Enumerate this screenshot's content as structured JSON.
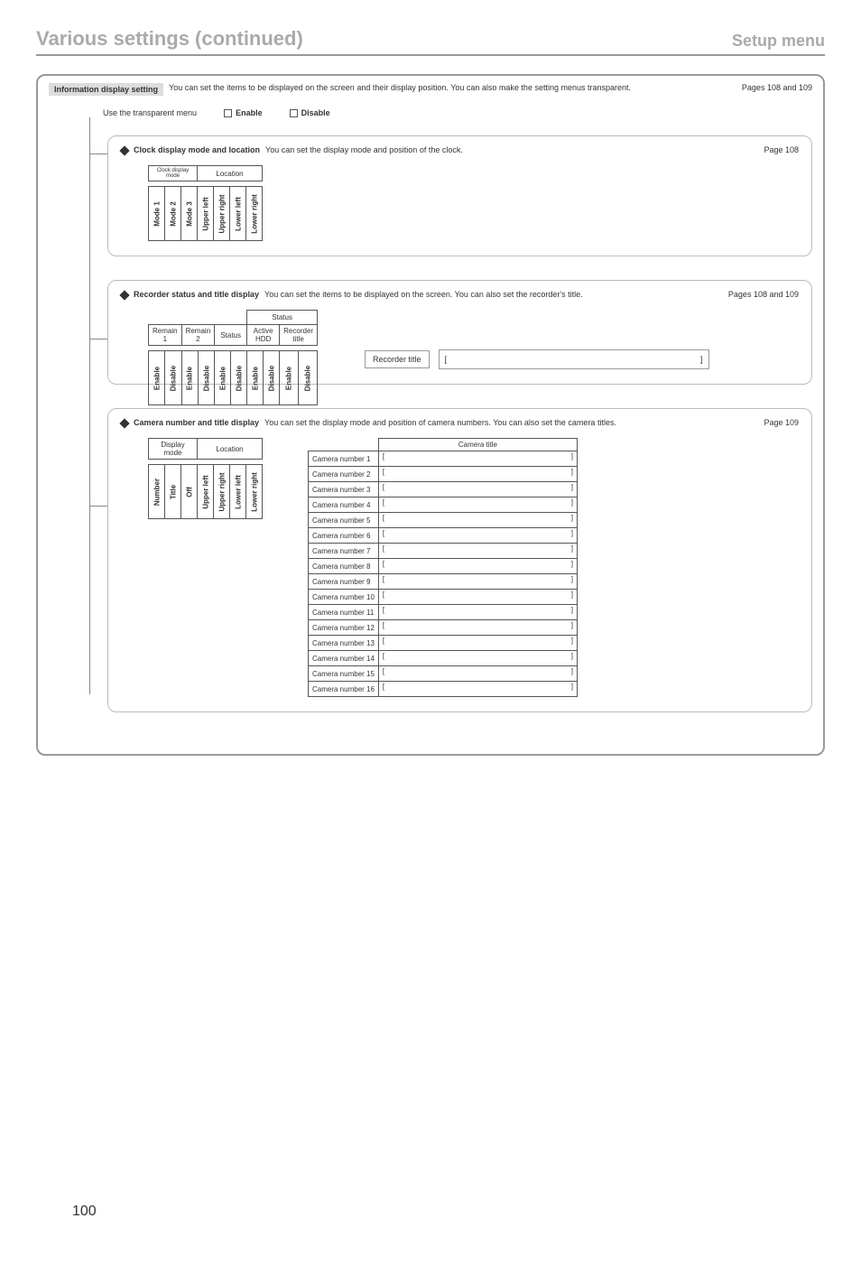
{
  "header": {
    "title": "Various settings (continued)",
    "subtitle": "Setup menu"
  },
  "main": {
    "title": "Information display setting",
    "desc": "You can set the items to be displayed on the screen and their display position. You can also make the setting menus transparent.",
    "pages": "Pages 108 and 109",
    "transparent_label": "Use the transparent menu",
    "enable": "Enable",
    "disable": "Disable"
  },
  "clock": {
    "title": "Clock display mode and location",
    "desc": "You can set the display mode and position of the clock.",
    "page": "Page 108",
    "group_mode": "Clock display mode",
    "group_loc": "Location",
    "opts": [
      "Mode 1",
      "Mode 2",
      "Mode 3",
      "Upper left",
      "Upper right",
      "Lower left",
      "Lower right"
    ]
  },
  "recorder": {
    "title": "Recorder status and title display",
    "desc": "You can set the items to be displayed on the screen. You can also set the recorder's title.",
    "page": "Pages 108 and 109",
    "top_status": "Status",
    "cols": [
      "Remain 1",
      "Remain 2",
      "Status",
      "Active HDD",
      "Recorder title"
    ],
    "toggle": [
      "Enable",
      "Disable"
    ],
    "rt_label": "Recorder title"
  },
  "camera": {
    "title": "Camera number and title display",
    "desc": "You can set the display mode and position of camera numbers. You can also set the camera titles.",
    "page": "Page 109",
    "group_mode": "Display mode",
    "group_loc": "Location",
    "opts": [
      "Number",
      "Title",
      "Off",
      "Upper left",
      "Upper right",
      "Lower left",
      "Lower right"
    ],
    "title_header": "Camera title",
    "rows": [
      "Camera number 1",
      "Camera number 2",
      "Camera number 3",
      "Camera number 4",
      "Camera number 5",
      "Camera number 6",
      "Camera number 7",
      "Camera number 8",
      "Camera number 9",
      "Camera number 10",
      "Camera number 11",
      "Camera number 12",
      "Camera number 13",
      "Camera number 14",
      "Camera number 15",
      "Camera number 16"
    ]
  },
  "page_number": "100"
}
